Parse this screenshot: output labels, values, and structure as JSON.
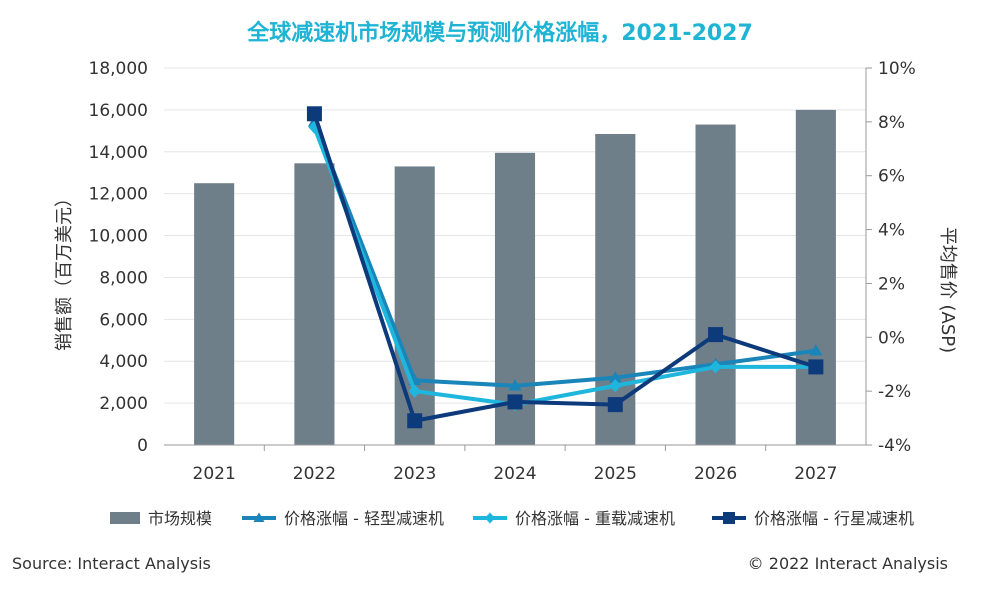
{
  "chart_data": {
    "type": "bar",
    "title": "全球减速机市场规模与预测价格涨幅，2021-2027",
    "categories": [
      "2021",
      "2022",
      "2023",
      "2024",
      "2025",
      "2026",
      "2027"
    ],
    "ylabel": "销售额（百万美元）",
    "y2label": "平均售价 (ASP)",
    "ylim": [
      0,
      18000
    ],
    "y2lim": [
      -4,
      10
    ],
    "yticks": [
      "0",
      "2,000",
      "4,000",
      "6,000",
      "8,000",
      "10,000",
      "12,000",
      "14,000",
      "16,000",
      "18,000"
    ],
    "y2ticks": [
      "-4%",
      "-2%",
      "0%",
      "2%",
      "4%",
      "6%",
      "8%",
      "10%"
    ],
    "grid": true,
    "legend_position": "bottom",
    "series": [
      {
        "name": "市场规模",
        "kind": "bar",
        "axis": "left",
        "color": "#6f7f8a",
        "values": [
          12500,
          13450,
          13300,
          13950,
          14850,
          15300,
          16000
        ]
      },
      {
        "name": "价格涨幅 - 轻型减速机",
        "kind": "line",
        "axis": "right",
        "marker": "triangle",
        "color": "#1a85b8",
        "values": [
          null,
          8.0,
          -1.6,
          -1.8,
          -1.5,
          -1.0,
          -0.5
        ]
      },
      {
        "name": "价格涨幅 - 重载减速机",
        "kind": "line",
        "axis": "right",
        "marker": "diamond",
        "color": "#1fb6de",
        "values": [
          null,
          7.8,
          -2.0,
          -2.5,
          -1.8,
          -1.1,
          -1.1
        ]
      },
      {
        "name": "价格涨幅 - 行星减速机",
        "kind": "line",
        "axis": "right",
        "marker": "square",
        "color": "#0d3a7a",
        "values": [
          null,
          8.3,
          -3.1,
          -2.4,
          -2.5,
          0.1,
          -1.1
        ]
      }
    ]
  },
  "footer": {
    "source": "Source: Interact Analysis",
    "copyright": "© 2022 Interact Analysis"
  }
}
